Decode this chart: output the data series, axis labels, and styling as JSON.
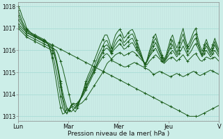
{
  "title": "",
  "xlabel": "Pression niveau de la mer( hPa )",
  "ylabel": "",
  "xlim": [
    0,
    96
  ],
  "ylim": [
    1012.8,
    1018.2
  ],
  "yticks": [
    1013,
    1014,
    1015,
    1016,
    1017,
    1018
  ],
  "xtick_positions": [
    0,
    24,
    48,
    72,
    96
  ],
  "xtick_labels": [
    "Lun",
    "Mar",
    "Mer",
    "Jeu",
    "V"
  ],
  "bg_color": "#cceee8",
  "grid_color_h": "#a8ddd6",
  "grid_color_v": "#b8ddd8",
  "line_color": "#1a5c1a",
  "series": [
    [
      1018.0,
      1017.8,
      1017.5,
      1017.3,
      1017.0,
      1016.9,
      1016.8,
      1016.7,
      1016.65,
      1016.6,
      1016.55,
      1016.5,
      1016.45,
      1016.4,
      1016.35,
      1016.3,
      1016.25,
      1016.2,
      1016.15,
      1016.1,
      1016.05,
      1016.0,
      1015.95,
      1015.9,
      1015.85,
      1015.8,
      1015.75,
      1015.7,
      1015.65,
      1015.6,
      1015.55,
      1015.5,
      1015.45,
      1015.4,
      1015.35,
      1015.3,
      1015.25,
      1015.2,
      1015.15,
      1015.1,
      1015.05,
      1015.0,
      1014.95,
      1014.9,
      1014.85,
      1014.8,
      1014.75,
      1014.7,
      1014.65,
      1014.6,
      1014.55,
      1014.5,
      1014.45,
      1014.4,
      1014.35,
      1014.3,
      1014.25,
      1014.2,
      1014.15,
      1014.1,
      1014.05,
      1014.0,
      1013.95,
      1013.9,
      1013.85,
      1013.8,
      1013.75,
      1013.7,
      1013.65,
      1013.6,
      1013.55,
      1013.5,
      1013.45,
      1013.4,
      1013.35,
      1013.3,
      1013.25,
      1013.2,
      1013.15,
      1013.1,
      1013.05,
      1013.0,
      1013.0,
      1013.0,
      1013.0,
      1013.0,
      1013.05,
      1013.1,
      1013.15,
      1013.2,
      1013.25,
      1013.3,
      1013.35,
      1013.4,
      1013.45,
      1013.5,
      1013.55
    ],
    [
      1017.1,
      1017.0,
      1016.9,
      1016.8,
      1016.7,
      1016.65,
      1016.6,
      1016.55,
      1016.5,
      1016.45,
      1016.4,
      1016.35,
      1016.3,
      1016.25,
      1016.2,
      1016.15,
      1016.1,
      1016.05,
      1016.0,
      1015.8,
      1015.5,
      1015.2,
      1014.8,
      1014.4,
      1014.0,
      1013.6,
      1013.3,
      1013.4,
      1013.5,
      1013.55,
      1013.6,
      1013.7,
      1013.8,
      1013.95,
      1014.1,
      1014.25,
      1014.4,
      1014.55,
      1014.7,
      1014.85,
      1015.0,
      1015.2,
      1015.4,
      1015.5,
      1015.55,
      1015.5,
      1015.45,
      1015.4,
      1015.35,
      1015.3,
      1015.25,
      1015.25,
      1015.3,
      1015.35,
      1015.4,
      1015.45,
      1015.4,
      1015.35,
      1015.3,
      1015.25,
      1015.2,
      1015.15,
      1015.1,
      1015.0,
      1014.9,
      1014.95,
      1015.0,
      1015.05,
      1015.0,
      1014.95,
      1014.9,
      1014.85,
      1014.8,
      1014.85,
      1014.9,
      1014.95,
      1014.9,
      1014.85,
      1014.8,
      1014.85,
      1014.9,
      1014.95,
      1015.0,
      1015.05,
      1015.0,
      1014.9,
      1014.85,
      1014.9,
      1014.95,
      1015.0,
      1015.05,
      1015.1,
      1015.05,
      1015.0,
      1014.95,
      1014.9
    ],
    [
      1017.0,
      1016.9,
      1016.8,
      1016.7,
      1016.6,
      1016.55,
      1016.5,
      1016.45,
      1016.4,
      1016.35,
      1016.3,
      1016.25,
      1016.2,
      1016.15,
      1016.1,
      1016.05,
      1016.0,
      1015.8,
      1015.5,
      1015.1,
      1014.6,
      1014.1,
      1013.7,
      1013.4,
      1013.3,
      1013.5,
      1013.6,
      1013.55,
      1013.6,
      1013.7,
      1013.85,
      1014.0,
      1014.2,
      1014.4,
      1014.6,
      1014.8,
      1015.0,
      1015.2,
      1015.4,
      1015.55,
      1015.7,
      1015.8,
      1015.85,
      1015.75,
      1015.6,
      1015.7,
      1015.8,
      1015.85,
      1015.9,
      1015.85,
      1015.75,
      1015.8,
      1015.85,
      1015.9,
      1015.95,
      1015.9,
      1015.8,
      1015.7,
      1015.6,
      1015.5,
      1015.35,
      1015.35,
      1015.5,
      1015.6,
      1015.7,
      1015.8,
      1015.7,
      1015.6,
      1015.5,
      1015.4,
      1015.5,
      1015.6,
      1015.65,
      1015.7,
      1015.6,
      1015.5,
      1015.6,
      1015.7,
      1015.8,
      1015.65,
      1015.5,
      1015.6,
      1015.7,
      1015.8,
      1015.85,
      1015.7,
      1015.55,
      1015.5,
      1015.6,
      1015.7,
      1015.65,
      1015.6,
      1015.65,
      1015.7,
      1015.6,
      1015.5
    ],
    [
      1017.2,
      1017.1,
      1017.0,
      1016.9,
      1016.8,
      1016.75,
      1016.7,
      1016.65,
      1016.6,
      1016.55,
      1016.5,
      1016.45,
      1016.4,
      1016.35,
      1016.3,
      1016.25,
      1016.2,
      1016.0,
      1015.6,
      1015.1,
      1014.5,
      1013.9,
      1013.5,
      1013.25,
      1013.3,
      1013.5,
      1013.6,
      1013.55,
      1013.6,
      1013.75,
      1013.9,
      1014.1,
      1014.3,
      1014.5,
      1014.7,
      1014.9,
      1015.1,
      1015.3,
      1015.5,
      1015.7,
      1015.9,
      1016.05,
      1016.1,
      1016.0,
      1015.85,
      1016.0,
      1016.1,
      1016.2,
      1016.3,
      1016.2,
      1016.05,
      1016.1,
      1016.2,
      1016.3,
      1016.35,
      1016.2,
      1016.0,
      1015.85,
      1015.7,
      1015.55,
      1015.4,
      1015.5,
      1015.7,
      1015.85,
      1016.0,
      1016.1,
      1015.9,
      1015.7,
      1015.55,
      1015.45,
      1015.6,
      1015.75,
      1015.9,
      1016.0,
      1015.85,
      1015.7,
      1015.85,
      1016.0,
      1016.2,
      1016.0,
      1015.8,
      1015.85,
      1016.0,
      1016.2,
      1016.3,
      1016.1,
      1015.9,
      1015.7,
      1015.85,
      1016.0,
      1015.85,
      1015.7,
      1015.85,
      1016.0,
      1015.85,
      1015.7
    ],
    [
      1017.4,
      1017.25,
      1017.1,
      1016.95,
      1016.8,
      1016.75,
      1016.7,
      1016.65,
      1016.6,
      1016.55,
      1016.5,
      1016.45,
      1016.4,
      1016.35,
      1016.3,
      1016.2,
      1016.1,
      1015.85,
      1015.45,
      1014.95,
      1014.35,
      1013.75,
      1013.3,
      1013.1,
      1013.3,
      1013.45,
      1013.55,
      1013.45,
      1013.55,
      1013.7,
      1013.9,
      1014.1,
      1014.35,
      1014.55,
      1014.75,
      1014.95,
      1015.15,
      1015.35,
      1015.6,
      1015.8,
      1016.0,
      1016.2,
      1016.25,
      1016.1,
      1015.9,
      1016.1,
      1016.25,
      1016.4,
      1016.5,
      1016.4,
      1016.2,
      1016.3,
      1016.4,
      1016.5,
      1016.55,
      1016.35,
      1016.15,
      1015.95,
      1015.75,
      1015.55,
      1015.35,
      1015.5,
      1015.75,
      1015.95,
      1016.2,
      1016.35,
      1016.1,
      1015.85,
      1015.65,
      1015.5,
      1015.65,
      1015.9,
      1016.1,
      1016.25,
      1016.0,
      1015.8,
      1016.0,
      1016.25,
      1016.5,
      1016.2,
      1015.95,
      1016.05,
      1016.25,
      1016.45,
      1016.55,
      1016.25,
      1016.0,
      1015.75,
      1016.0,
      1016.2,
      1016.0,
      1015.8,
      1016.0,
      1016.25,
      1016.0,
      1015.8
    ],
    [
      1017.6,
      1017.4,
      1017.2,
      1017.0,
      1016.9,
      1016.8,
      1016.75,
      1016.7,
      1016.65,
      1016.6,
      1016.55,
      1016.5,
      1016.45,
      1016.4,
      1016.3,
      1016.1,
      1015.85,
      1015.5,
      1015.05,
      1014.5,
      1013.9,
      1013.4,
      1013.2,
      1013.15,
      1013.3,
      1013.4,
      1013.45,
      1013.35,
      1013.5,
      1013.7,
      1013.95,
      1014.2,
      1014.5,
      1014.7,
      1014.9,
      1015.1,
      1015.3,
      1015.55,
      1015.8,
      1016.0,
      1016.2,
      1016.4,
      1016.45,
      1016.2,
      1015.95,
      1016.2,
      1016.45,
      1016.6,
      1016.7,
      1016.6,
      1016.35,
      1016.45,
      1016.6,
      1016.7,
      1016.75,
      1016.55,
      1016.3,
      1016.05,
      1015.8,
      1015.55,
      1015.3,
      1015.55,
      1015.85,
      1016.1,
      1016.4,
      1016.55,
      1016.25,
      1015.95,
      1015.7,
      1015.55,
      1015.7,
      1016.0,
      1016.3,
      1016.45,
      1016.15,
      1015.9,
      1016.15,
      1016.5,
      1016.75,
      1016.35,
      1016.1,
      1016.2,
      1016.45,
      1016.65,
      1016.75,
      1016.35,
      1016.05,
      1015.8,
      1016.1,
      1016.35,
      1016.1,
      1015.9,
      1016.1,
      1016.4,
      1016.1,
      1015.9
    ],
    [
      1017.8,
      1017.55,
      1017.3,
      1017.1,
      1016.95,
      1016.85,
      1016.8,
      1016.75,
      1016.7,
      1016.65,
      1016.6,
      1016.55,
      1016.5,
      1016.45,
      1016.3,
      1016.05,
      1015.65,
      1015.15,
      1014.55,
      1013.95,
      1013.4,
      1013.1,
      1013.15,
      1013.35,
      1013.25,
      1013.2,
      1013.3,
      1013.2,
      1013.4,
      1013.65,
      1013.95,
      1014.25,
      1014.6,
      1014.85,
      1015.05,
      1015.3,
      1015.55,
      1015.8,
      1016.05,
      1016.3,
      1016.5,
      1016.7,
      1016.7,
      1016.45,
      1016.1,
      1016.4,
      1016.7,
      1016.85,
      1016.95,
      1016.8,
      1016.55,
      1016.65,
      1016.8,
      1016.9,
      1016.95,
      1016.75,
      1016.45,
      1016.15,
      1015.9,
      1015.6,
      1015.3,
      1015.6,
      1015.95,
      1016.25,
      1016.6,
      1016.75,
      1016.4,
      1016.1,
      1015.8,
      1015.6,
      1015.8,
      1016.15,
      1016.5,
      1016.7,
      1016.35,
      1016.1,
      1016.35,
      1016.7,
      1017.0,
      1016.55,
      1016.2,
      1016.35,
      1016.6,
      1016.85,
      1017.0,
      1016.55,
      1016.2,
      1015.95,
      1016.25,
      1016.5,
      1016.2,
      1016.0,
      1016.25,
      1016.55,
      1016.25,
      1016.0
    ]
  ]
}
